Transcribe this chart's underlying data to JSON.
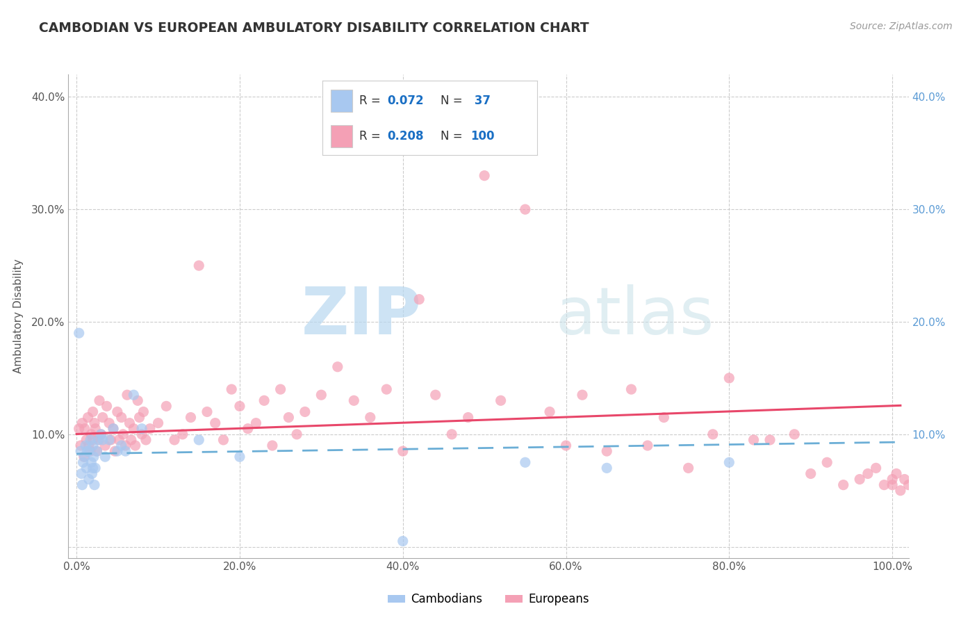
{
  "title": "CAMBODIAN VS EUROPEAN AMBULATORY DISABILITY CORRELATION CHART",
  "source": "Source: ZipAtlas.com",
  "ylabel": "Ambulatory Disability",
  "x_ticklabels": [
    "0.0%",
    "20.0%",
    "40.0%",
    "60.0%",
    "80.0%",
    "100.0%"
  ],
  "x_ticks": [
    0,
    20,
    40,
    60,
    80,
    100
  ],
  "y_ticklabels_left": [
    "",
    "10.0%",
    "20.0%",
    "30.0%",
    "40.0%"
  ],
  "y_ticklabels_right": [
    "",
    "10.0%",
    "20.0%",
    "30.0%",
    "40.0%"
  ],
  "y_ticks": [
    0,
    10,
    20,
    30,
    40
  ],
  "xlim": [
    0,
    100
  ],
  "ylim": [
    0,
    40
  ],
  "cambodian_R": 0.072,
  "cambodian_N": 37,
  "european_R": 0.208,
  "european_N": 100,
  "cambodian_color": "#a8c8f0",
  "european_color": "#f4a0b5",
  "cambodian_line_color": "#6baed6",
  "european_line_color": "#e8476a",
  "background_color": "#ffffff",
  "grid_color": "#cccccc",
  "legend_label_cambodians": "Cambodians",
  "legend_label_europeans": "Europeans",
  "watermark_zip": "ZIP",
  "watermark_atlas": "atlas",
  "title_color": "#333333",
  "source_color": "#999999",
  "left_tick_color": "#555555",
  "right_tick_color": "#5b9bd5",
  "cambodian_x": [
    0.3,
    0.5,
    0.6,
    0.7,
    0.8,
    1.0,
    1.1,
    1.2,
    1.3,
    1.5,
    1.5,
    1.7,
    1.8,
    1.9,
    2.0,
    2.0,
    2.1,
    2.2,
    2.3,
    2.5,
    2.7,
    3.0,
    3.2,
    3.5,
    4.0,
    4.5,
    5.0,
    5.5,
    6.0,
    7.0,
    8.0,
    15.0,
    20.0,
    40.0,
    55.0,
    65.0,
    80.0
  ],
  "cambodian_y": [
    19.0,
    8.5,
    6.5,
    5.5,
    7.5,
    8.0,
    9.0,
    7.0,
    8.5,
    6.0,
    8.5,
    9.5,
    7.5,
    6.5,
    9.0,
    7.0,
    8.0,
    5.5,
    7.0,
    8.5,
    9.5,
    10.0,
    9.5,
    8.0,
    9.5,
    10.5,
    8.5,
    9.0,
    8.5,
    13.5,
    10.5,
    9.5,
    8.0,
    0.5,
    7.5,
    7.0,
    7.5
  ],
  "european_x": [
    0.3,
    0.5,
    0.7,
    0.9,
    1.0,
    1.2,
    1.4,
    1.5,
    1.7,
    1.8,
    2.0,
    2.0,
    2.2,
    2.3,
    2.5,
    2.7,
    2.8,
    3.0,
    3.2,
    3.5,
    3.7,
    4.0,
    4.2,
    4.5,
    4.7,
    5.0,
    5.2,
    5.5,
    5.7,
    6.0,
    6.2,
    6.5,
    6.7,
    7.0,
    7.2,
    7.5,
    7.7,
    8.0,
    8.2,
    8.5,
    9.0,
    10.0,
    11.0,
    12.0,
    13.0,
    14.0,
    15.0,
    16.0,
    17.0,
    18.0,
    19.0,
    20.0,
    21.0,
    22.0,
    23.0,
    24.0,
    25.0,
    26.0,
    27.0,
    28.0,
    30.0,
    32.0,
    34.0,
    36.0,
    38.0,
    40.0,
    42.0,
    44.0,
    46.0,
    48.0,
    50.0,
    52.0,
    55.0,
    58.0,
    60.0,
    62.0,
    65.0,
    68.0,
    70.0,
    72.0,
    75.0,
    78.0,
    80.0,
    83.0,
    85.0,
    88.0,
    90.0,
    92.0,
    94.0,
    96.0,
    97.0,
    98.0,
    99.0,
    100.0,
    100.0,
    100.5,
    101.0,
    101.5,
    102.0,
    103.0
  ],
  "european_y": [
    10.5,
    9.0,
    11.0,
    8.0,
    10.5,
    9.5,
    11.5,
    9.0,
    8.5,
    10.0,
    12.0,
    9.5,
    11.0,
    10.5,
    8.5,
    9.5,
    13.0,
    10.0,
    11.5,
    9.0,
    12.5,
    11.0,
    9.5,
    10.5,
    8.5,
    12.0,
    9.5,
    11.5,
    10.0,
    9.0,
    13.5,
    11.0,
    9.5,
    10.5,
    9.0,
    13.0,
    11.5,
    10.0,
    12.0,
    9.5,
    10.5,
    11.0,
    12.5,
    9.5,
    10.0,
    11.5,
    25.0,
    12.0,
    11.0,
    9.5,
    14.0,
    12.5,
    10.5,
    11.0,
    13.0,
    9.0,
    14.0,
    11.5,
    10.0,
    12.0,
    13.5,
    16.0,
    13.0,
    11.5,
    14.0,
    8.5,
    22.0,
    13.5,
    10.0,
    11.5,
    33.0,
    13.0,
    30.0,
    12.0,
    9.0,
    13.5,
    8.5,
    14.0,
    9.0,
    11.5,
    7.0,
    10.0,
    15.0,
    9.5,
    9.5,
    10.0,
    6.5,
    7.5,
    5.5,
    6.0,
    6.5,
    7.0,
    5.5,
    6.0,
    5.5,
    6.5,
    5.0,
    6.0,
    5.5,
    5.0
  ]
}
